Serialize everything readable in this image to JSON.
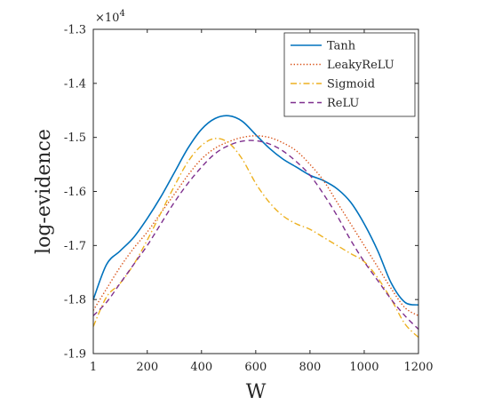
{
  "chart_data": {
    "type": "line",
    "title": "",
    "xlabel": "W",
    "ylabel": "log-evidence",
    "y_exponent_label": "×10",
    "y_exponent_power": "4",
    "xlim": [
      1,
      1200
    ],
    "ylim": [
      -1.9,
      -1.3
    ],
    "x_ticks": [
      1,
      200,
      400,
      600,
      800,
      1000,
      1200
    ],
    "x_tick_labels": [
      "1",
      "200",
      "400",
      "600",
      "800",
      "1000",
      "1200"
    ],
    "y_ticks": [
      -1.9,
      -1.8,
      -1.7,
      -1.6,
      -1.5,
      -1.4,
      -1.3
    ],
    "y_tick_labels": [
      "-1.9",
      "-1.8",
      "-1.7",
      "-1.6",
      "-1.5",
      "-1.4",
      "-1.3"
    ],
    "grid": false,
    "legend_position": "top-right",
    "x": [
      1,
      50,
      100,
      150,
      200,
      250,
      300,
      350,
      400,
      450,
      500,
      550,
      600,
      650,
      700,
      750,
      800,
      850,
      900,
      950,
      1000,
      1050,
      1100,
      1150,
      1200
    ],
    "series": [
      {
        "name": "Tanh",
        "color": "#0072BD",
        "dash": "solid",
        "values": [
          -1.8,
          -1.735,
          -1.71,
          -1.685,
          -1.65,
          -1.61,
          -1.565,
          -1.52,
          -1.485,
          -1.465,
          -1.46,
          -1.47,
          -1.495,
          -1.52,
          -1.54,
          -1.555,
          -1.57,
          -1.58,
          -1.595,
          -1.62,
          -1.66,
          -1.71,
          -1.77,
          -1.805,
          -1.81
        ]
      },
      {
        "name": "LeakyReLU",
        "color": "#D95319",
        "dash": "dotted",
        "values": [
          -1.82,
          -1.78,
          -1.74,
          -1.705,
          -1.675,
          -1.64,
          -1.605,
          -1.57,
          -1.54,
          -1.52,
          -1.508,
          -1.5,
          -1.497,
          -1.5,
          -1.51,
          -1.525,
          -1.55,
          -1.58,
          -1.62,
          -1.66,
          -1.7,
          -1.74,
          -1.78,
          -1.815,
          -1.83
        ]
      },
      {
        "name": "Sigmoid",
        "color": "#EDB120",
        "dash": "dashdot",
        "values": [
          -1.85,
          -1.795,
          -1.77,
          -1.735,
          -1.69,
          -1.64,
          -1.59,
          -1.545,
          -1.515,
          -1.502,
          -1.51,
          -1.54,
          -1.585,
          -1.62,
          -1.645,
          -1.66,
          -1.67,
          -1.685,
          -1.7,
          -1.715,
          -1.73,
          -1.76,
          -1.8,
          -1.845,
          -1.87
        ]
      },
      {
        "name": "ReLU",
        "color": "#7E2F8E",
        "dash": "dashed",
        "values": [
          -1.83,
          -1.805,
          -1.77,
          -1.735,
          -1.7,
          -1.66,
          -1.62,
          -1.585,
          -1.555,
          -1.53,
          -1.515,
          -1.507,
          -1.506,
          -1.512,
          -1.525,
          -1.545,
          -1.57,
          -1.605,
          -1.645,
          -1.69,
          -1.73,
          -1.765,
          -1.8,
          -1.83,
          -1.855
        ]
      }
    ]
  }
}
